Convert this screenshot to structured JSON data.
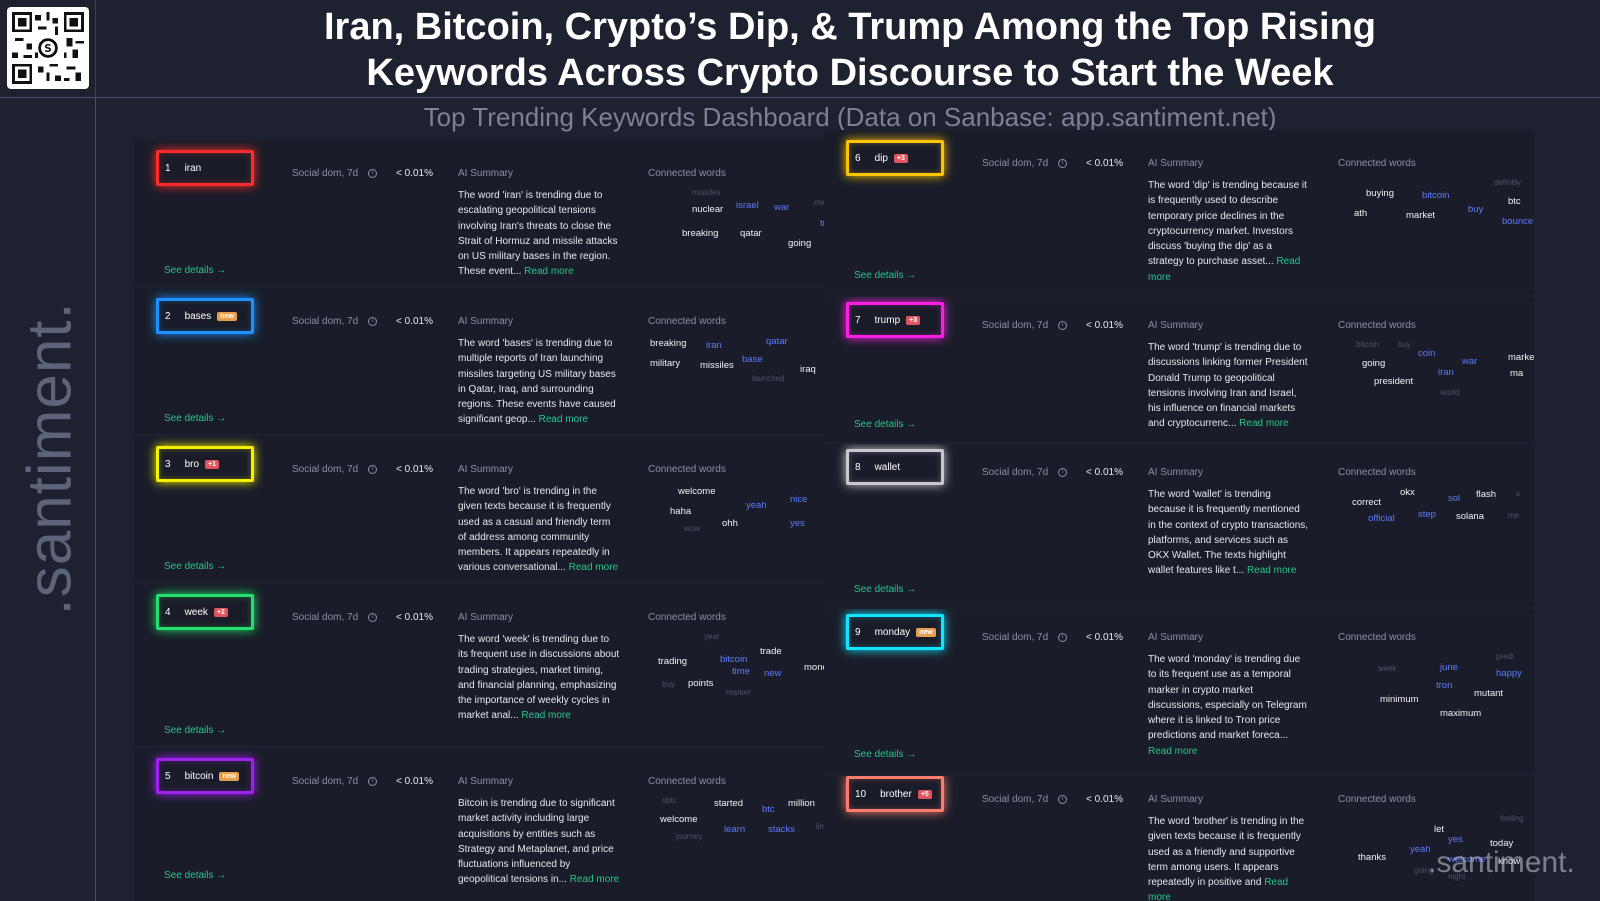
{
  "header": {
    "title_line1": "Iran, Bitcoin, Crypto’s Dip, & Trump Among the Top Rising",
    "title_line2": "Keywords Across Crypto Discourse to Start the Week",
    "subtitle": "Top Trending Keywords Dashboard (Data on Sanbase: app.santiment.net)"
  },
  "brand": {
    "side_logo": ".santiment.",
    "corner_logo": ".santiment."
  },
  "labels": {
    "social_dom": "Social dom, 7d",
    "info_glyph": "i",
    "ai_summary": "AI Summary",
    "connected_words": "Connected words",
    "see_details": "See details →",
    "read_more": "Read more"
  },
  "colors": {
    "background": "#1e2130",
    "card": "#1a1d29",
    "accent_green": "#26c391",
    "word_blue": "#5b7bff"
  },
  "keywords": [
    {
      "rank": "1",
      "word": "iran",
      "badge": "",
      "badge_type": "",
      "border_color": "#ff2a2a",
      "social_dom": "< 0.01%",
      "summary": "The word 'iran' is trending due to escalating geopolitical tensions involving Iran's threats to close the Strait of Hormuz and missile attacks on US military bases in the region. These event...",
      "words": [
        {
          "t": "missiles",
          "c": "g"
        },
        {
          "t": "nuclear",
          "c": "w"
        },
        {
          "t": "israel",
          "c": "b"
        },
        {
          "t": "war",
          "c": "b"
        },
        {
          "t": "ma",
          "c": "g"
        },
        {
          "t": "trum",
          "c": "b"
        },
        {
          "t": "breaking",
          "c": "w"
        },
        {
          "t": "qatar",
          "c": "w"
        },
        {
          "t": "going",
          "c": "w"
        }
      ]
    },
    {
      "rank": "2",
      "word": "bases",
      "badge": "new",
      "badge_type": "new",
      "border_color": "#1e90ff",
      "social_dom": "< 0.01%",
      "summary": "The word 'bases' is trending due to multiple reports of Iran launching missiles targeting US military bases in Qatar, Iraq, and surrounding regions. These events have caused significant geop...",
      "words": [
        {
          "t": "qatar",
          "c": "b"
        },
        {
          "t": "breaking",
          "c": "w"
        },
        {
          "t": "iran",
          "c": "b"
        },
        {
          "t": "a",
          "c": "g"
        },
        {
          "t": "base",
          "c": "b"
        },
        {
          "t": "military",
          "c": "w"
        },
        {
          "t": "missiles",
          "c": "w"
        },
        {
          "t": "iraq",
          "c": "w"
        },
        {
          "t": "launched",
          "c": "g"
        }
      ]
    },
    {
      "rank": "3",
      "word": "bro",
      "badge": "+1",
      "badge_type": "up",
      "border_color": "#f4f000",
      "social_dom": "< 0.01%",
      "summary": "The word 'bro' is trending in the given texts because it is frequently used as a casual and friendly term of address among community members. It appears repeatedly in various conversational...",
      "words": [
        {
          "t": "welcome",
          "c": "w"
        },
        {
          "t": "nice",
          "c": "b"
        },
        {
          "t": "yeah",
          "c": "b"
        },
        {
          "t": "haha",
          "c": "w"
        },
        {
          "t": "ohh",
          "c": "w"
        },
        {
          "t": "yes",
          "c": "b"
        },
        {
          "t": "wow",
          "c": "g"
        }
      ]
    },
    {
      "rank": "4",
      "word": "week",
      "badge": "+2",
      "badge_type": "up",
      "border_color": "#22e06b",
      "social_dom": "< 0.01%",
      "summary": "The word 'week' is trending due to its frequent use in discussions about trading strategies, market timing, and financial planning, emphasizing the importance of weekly cycles in market anal...",
      "words": [
        {
          "t": "year",
          "c": "g"
        },
        {
          "t": "trade",
          "c": "w"
        },
        {
          "t": "bitcoin",
          "c": "b"
        },
        {
          "t": "trading",
          "c": "w"
        },
        {
          "t": "money",
          "c": "w"
        },
        {
          "t": "time",
          "c": "b"
        },
        {
          "t": "new",
          "c": "b"
        },
        {
          "t": "points",
          "c": "w"
        },
        {
          "t": "buy",
          "c": "g"
        },
        {
          "t": "market",
          "c": "g"
        }
      ]
    },
    {
      "rank": "5",
      "word": "bitcoin",
      "badge": "new",
      "badge_type": "new",
      "border_color": "#a020f0",
      "social_dom": "< 0.01%",
      "summary": "Bitcoin is trending due to significant market activity including large acquisitions by entities such as Strategy and Metaplanet, and price fluctuations influenced by geopolitical tensions in...",
      "words": [
        {
          "t": "sbtc",
          "c": "g"
        },
        {
          "t": "started",
          "c": "w"
        },
        {
          "t": "million",
          "c": "w"
        },
        {
          "t": "btc",
          "c": "b"
        },
        {
          "t": "welcome",
          "c": "w"
        },
        {
          "t": "learn",
          "c": "b"
        },
        {
          "t": "stacks",
          "c": "b"
        },
        {
          "t": "link",
          "c": "g"
        },
        {
          "t": "journey",
          "c": "g"
        }
      ]
    },
    {
      "rank": "6",
      "word": "dip",
      "badge": "+3",
      "badge_type": "up",
      "border_color": "#ffc400",
      "social_dom": "< 0.01%",
      "summary": "The word 'dip' is trending because it is frequently used to describe temporary price declines in the cryptocurrency market. Investors discuss 'buying the dip' as a strategy to purchase asset...",
      "words": [
        {
          "t": "definitly",
          "c": "g"
        },
        {
          "t": "buying",
          "c": "w"
        },
        {
          "t": "bitcoin",
          "c": "b"
        },
        {
          "t": "btc",
          "c": "w"
        },
        {
          "t": "buy",
          "c": "b"
        },
        {
          "t": "ath",
          "c": "w"
        },
        {
          "t": "market",
          "c": "w"
        },
        {
          "t": "bounce",
          "c": "b"
        }
      ]
    },
    {
      "rank": "7",
      "word": "trump",
      "badge": "+3",
      "badge_type": "up",
      "border_color": "#ff1ee6",
      "social_dom": "< 0.01%",
      "summary": "The word 'trump' is trending due to discussions linking former President Donald Trump to geopolitical tensions involving Iran and Israel, his influence on financial markets and cryptocurrenc...",
      "words": [
        {
          "t": "bitcoin",
          "c": "g"
        },
        {
          "t": "buy",
          "c": "g"
        },
        {
          "t": "coin",
          "c": "b"
        },
        {
          "t": "market",
          "c": "w"
        },
        {
          "t": "going",
          "c": "w"
        },
        {
          "t": "war",
          "c": "b"
        },
        {
          "t": "iran",
          "c": "b"
        },
        {
          "t": "ma",
          "c": "w"
        },
        {
          "t": "president",
          "c": "w"
        },
        {
          "t": "world",
          "c": "g"
        }
      ]
    },
    {
      "rank": "8",
      "word": "wallet",
      "badge": "",
      "badge_type": "",
      "border_color": "#c8c8d0",
      "social_dom": "< 0.01%",
      "summary": "The word 'wallet' is trending because it is frequently mentioned in the context of crypto transactions, platforms, and services such as OKX Wallet. The texts highlight wallet features like t...",
      "words": [
        {
          "t": "okx",
          "c": "w"
        },
        {
          "t": "flash",
          "c": "w"
        },
        {
          "t": "correct",
          "c": "w"
        },
        {
          "t": "sol",
          "c": "b"
        },
        {
          "t": "s",
          "c": "g"
        },
        {
          "t": "official",
          "c": "b"
        },
        {
          "t": "step",
          "c": "b"
        },
        {
          "t": "solana",
          "c": "w"
        },
        {
          "t": "me",
          "c": "g"
        }
      ]
    },
    {
      "rank": "9",
      "word": "monday",
      "badge": "new",
      "badge_type": "new",
      "border_color": "#12e5ff",
      "social_dom": "< 0.01%",
      "summary": "The word 'monday' is trending due to its frequent use as a temporal marker in crypto market discussions, especially on Telegram where it is linked to Tron price predictions and market foreca...",
      "words": [
        {
          "t": "predi",
          "c": "g"
        },
        {
          "t": "week",
          "c": "g"
        },
        {
          "t": "june",
          "c": "b"
        },
        {
          "t": "happy",
          "c": "b"
        },
        {
          "t": "tron",
          "c": "b"
        },
        {
          "t": "mutant",
          "c": "w"
        },
        {
          "t": "minimum",
          "c": "w"
        },
        {
          "t": "maximum",
          "c": "w"
        }
      ]
    },
    {
      "rank": "10",
      "word": "brother",
      "badge": "+5",
      "badge_type": "up",
      "border_color": "#ff7b6b",
      "social_dom": "< 0.01%",
      "summary": "The word 'brother' is trending in the given texts because it is frequently used as a friendly and supportive term among users. It appears repeatedly in positive and",
      "words": [
        {
          "t": "feeling",
          "c": "g"
        },
        {
          "t": "let",
          "c": "w"
        },
        {
          "t": "yes",
          "c": "b"
        },
        {
          "t": "today",
          "c": "w"
        },
        {
          "t": "yeah",
          "c": "b"
        },
        {
          "t": "thanks",
          "c": "w"
        },
        {
          "t": "welcome",
          "c": "b"
        },
        {
          "t": "know",
          "c": "w"
        },
        {
          "t": "going",
          "c": "g"
        },
        {
          "t": "night",
          "c": "g"
        }
      ]
    }
  ]
}
